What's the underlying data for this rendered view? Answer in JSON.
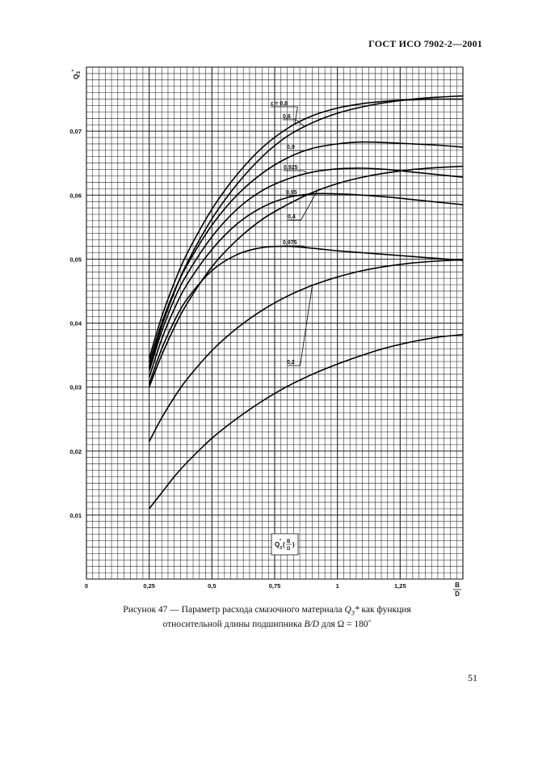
{
  "header": "ГОСТ ИСО 7902-2—2001",
  "page_number": "51",
  "caption": {
    "line1_prefix": "Рисунок 47 — Параметр расхода смазочного материала",
    "line1_symbol": "Q",
    "line1_symbol_sub": "3",
    "line1_symbol_sup": "*",
    "line1_suffix": "как функция",
    "line2_prefix": "относительной длины подшипника",
    "line2_symbol": "B/D",
    "line2_suffix": "для Ω = 180˚"
  },
  "chart_data": {
    "type": "line",
    "title": "",
    "ylabel": "Q3*",
    "xlabel": "B/D",
    "inset_label": "Q3*(B/D)",
    "xlim": [
      0,
      1.5
    ],
    "ylim": [
      0,
      0.08
    ],
    "grid": true,
    "x_ticks": [
      {
        "value": 0,
        "label": "0"
      },
      {
        "value": 0.25,
        "label": "0,25"
      },
      {
        "value": 0.5,
        "label": "0,5"
      },
      {
        "value": 0.75,
        "label": "0,75"
      },
      {
        "value": 1.0,
        "label": "1"
      },
      {
        "value": 1.25,
        "label": "1,25"
      }
    ],
    "y_ticks": [
      {
        "value": 0.01,
        "label": "0,01"
      },
      {
        "value": 0.02,
        "label": "0,02"
      },
      {
        "value": 0.03,
        "label": "0,03"
      },
      {
        "value": 0.04,
        "label": "0,04"
      },
      {
        "value": 0.05,
        "label": "0,05"
      },
      {
        "value": 0.06,
        "label": "0,06"
      },
      {
        "value": 0.07,
        "label": "0,07"
      }
    ],
    "series": [
      {
        "name": "ε = 0,8",
        "x": [
          0.25,
          0.3,
          0.35,
          0.4,
          0.5,
          0.6,
          0.7,
          0.8,
          0.9,
          1.0,
          1.1,
          1.2,
          1.3,
          1.4,
          1.5
        ],
        "values": [
          0.0345,
          0.041,
          0.0463,
          0.0508,
          0.0578,
          0.0632,
          0.0674,
          0.0704,
          0.0724,
          0.0736,
          0.0743,
          0.0747,
          0.0749,
          0.075,
          0.075
        ]
      },
      {
        "name": "0,6",
        "x": [
          0.25,
          0.3,
          0.35,
          0.4,
          0.5,
          0.6,
          0.7,
          0.8,
          0.9,
          1.0,
          1.1,
          1.2,
          1.3,
          1.4,
          1.5
        ],
        "values": [
          0.033,
          0.0395,
          0.0448,
          0.0493,
          0.0563,
          0.0617,
          0.066,
          0.0692,
          0.0713,
          0.0728,
          0.0738,
          0.0745,
          0.075,
          0.0753,
          0.0755
        ]
      },
      {
        "name": "0,9",
        "x": [
          0.25,
          0.3,
          0.35,
          0.4,
          0.5,
          0.6,
          0.7,
          0.8,
          0.9,
          1.0,
          1.1,
          1.2,
          1.3,
          1.4,
          1.5
        ],
        "values": [
          0.0338,
          0.04,
          0.045,
          0.049,
          0.0553,
          0.06,
          0.0634,
          0.0658,
          0.0673,
          0.068,
          0.0683,
          0.0682,
          0.068,
          0.0678,
          0.0675
        ]
      },
      {
        "name": "0,925",
        "x": [
          0.25,
          0.3,
          0.35,
          0.4,
          0.5,
          0.6,
          0.7,
          0.8,
          0.9,
          1.0,
          1.1,
          1.2,
          1.3,
          1.4,
          1.5
        ],
        "values": [
          0.0325,
          0.0387,
          0.0437,
          0.0476,
          0.0535,
          0.0578,
          0.0607,
          0.0625,
          0.0636,
          0.0641,
          0.0642,
          0.064,
          0.0636,
          0.0632,
          0.0628
        ]
      },
      {
        "name": "0,95",
        "x": [
          0.25,
          0.3,
          0.35,
          0.4,
          0.5,
          0.6,
          0.7,
          0.8,
          0.9,
          1.0,
          1.1,
          1.2,
          1.3,
          1.4,
          1.5
        ],
        "values": [
          0.0315,
          0.0375,
          0.0422,
          0.046,
          0.0515,
          0.0555,
          0.0581,
          0.0596,
          0.0602,
          0.0602,
          0.06,
          0.0597,
          0.0593,
          0.0589,
          0.0585
        ]
      },
      {
        "name": "0,4",
        "x": [
          0.25,
          0.3,
          0.35,
          0.4,
          0.5,
          0.6,
          0.7,
          0.8,
          0.9,
          1.0,
          1.1,
          1.2,
          1.3,
          1.4,
          1.5
        ],
        "values": [
          0.03,
          0.035,
          0.0393,
          0.043,
          0.0488,
          0.053,
          0.0562,
          0.0585,
          0.0604,
          0.0618,
          0.0628,
          0.0635,
          0.064,
          0.0643,
          0.0645
        ]
      },
      {
        "name": "0,975",
        "x": [
          0.25,
          0.3,
          0.35,
          0.4,
          0.5,
          0.6,
          0.7,
          0.8,
          0.9,
          1.0,
          1.1,
          1.2,
          1.3,
          1.4,
          1.5
        ],
        "values": [
          0.0305,
          0.036,
          0.0403,
          0.0437,
          0.0482,
          0.0507,
          0.0518,
          0.052,
          0.0517,
          0.0513,
          0.051,
          0.0507,
          0.0504,
          0.0501,
          0.0498
        ]
      },
      {
        "name": "0,2",
        "x": [
          0.25,
          0.3,
          0.35,
          0.4,
          0.5,
          0.6,
          0.7,
          0.8,
          0.9,
          1.0,
          1.1,
          1.2,
          1.3,
          1.4,
          1.5
        ],
        "values": [
          0.0215,
          0.0252,
          0.0284,
          0.0312,
          0.0357,
          0.0392,
          0.042,
          0.0442,
          0.0459,
          0.0472,
          0.0482,
          0.0489,
          0.0494,
          0.0497,
          0.0499
        ]
      },
      {
        "name": "",
        "x": [
          0.25,
          0.3,
          0.35,
          0.4,
          0.5,
          0.6,
          0.7,
          0.8,
          0.9,
          1.0,
          1.1,
          1.2,
          1.3,
          1.4,
          1.5
        ],
        "values": [
          0.011,
          0.0135,
          0.016,
          0.0182,
          0.022,
          0.0251,
          0.0278,
          0.0301,
          0.032,
          0.0336,
          0.035,
          0.0362,
          0.0371,
          0.0378,
          0.0382
        ]
      }
    ]
  }
}
